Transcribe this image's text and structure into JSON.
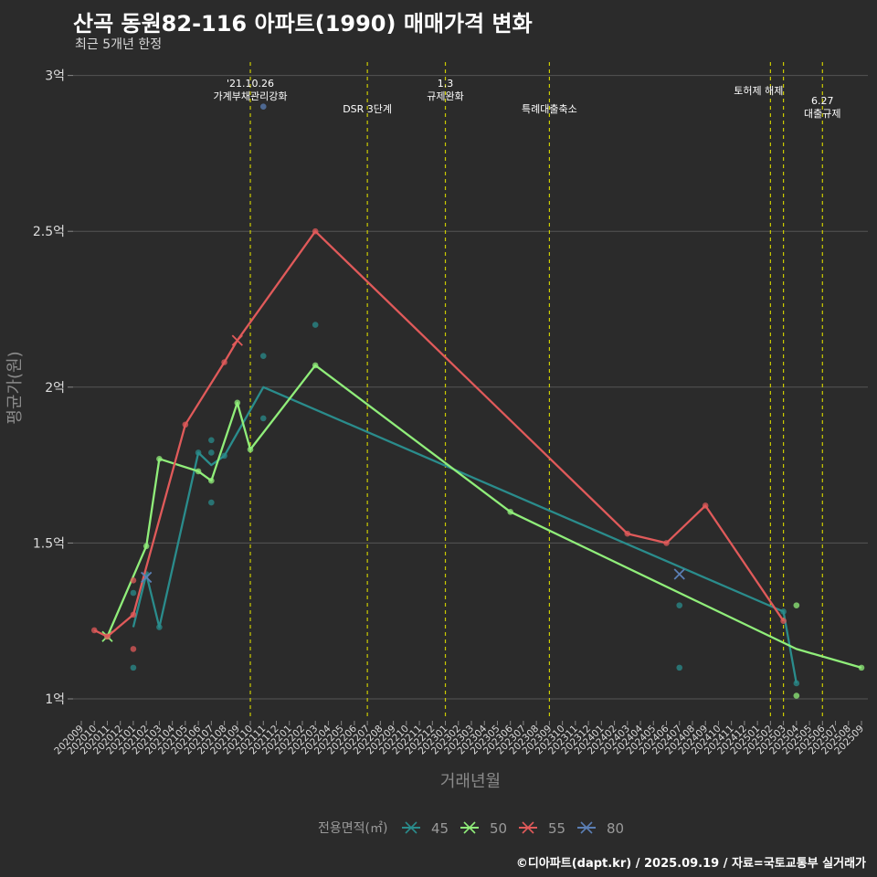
{
  "header": {
    "title": "산곡 동원82-116 아파트(1990) 매매가격 변화",
    "subtitle": "최근 5개년 한정"
  },
  "caption": "©디아파트(dapt.kr) / 2025.09.19 / 자료=국토교통부 실거래가",
  "colors": {
    "background": "#2b2b2b",
    "grid": "#555555",
    "event_line": "#cccc00",
    "s45": "#2a8c8c",
    "s50": "#90ee7a",
    "s55": "#e05a5a",
    "s80": "#5b7fb5"
  },
  "chart_data": {
    "type": "line",
    "title": "산곡 동원82-116 아파트(1990) 매매가격 변화",
    "subtitle": "최근 5개년 한정",
    "xlabel": "거래년월",
    "ylabel": "평균가(원)",
    "ylim": [
      0.95,
      3.05
    ],
    "yticks": [
      {
        "v": 1.0,
        "label": "1억"
      },
      {
        "v": 1.5,
        "label": "1.5억"
      },
      {
        "v": 2.0,
        "label": "2억"
      },
      {
        "v": 2.5,
        "label": "2.5억"
      },
      {
        "v": 3.0,
        "label": "3억"
      }
    ],
    "x_categories": [
      "202009",
      "202010",
      "202011",
      "202012",
      "202101",
      "202102",
      "202103",
      "202104",
      "202105",
      "202106",
      "202107",
      "202108",
      "202109",
      "202110",
      "202111",
      "202112",
      "202201",
      "202202",
      "202203",
      "202204",
      "202205",
      "202206",
      "202207",
      "202208",
      "202209",
      "202210",
      "202211",
      "202212",
      "202301",
      "202302",
      "202303",
      "202304",
      "202305",
      "202306",
      "202307",
      "202308",
      "202309",
      "202310",
      "202311",
      "202312",
      "202401",
      "202402",
      "202403",
      "202404",
      "202405",
      "202406",
      "202407",
      "202408",
      "202409",
      "202410",
      "202411",
      "202412",
      "202501",
      "202502",
      "202503",
      "202504",
      "202505",
      "202506",
      "202507",
      "202508",
      "202509"
    ],
    "grid": true,
    "legend": {
      "title": "전용면적(㎡)",
      "position": "bottom",
      "items": [
        {
          "key": "s45",
          "label": "45"
        },
        {
          "key": "s50",
          "label": "50"
        },
        {
          "key": "s55",
          "label": "55"
        },
        {
          "key": "s80",
          "label": "80"
        }
      ]
    },
    "events": [
      {
        "x": "202110",
        "lines": [
          "'21.10.26",
          "가계부채관리강화"
        ],
        "pos": "high"
      },
      {
        "x": "202207",
        "lines": [
          "DSR 3단계"
        ],
        "pos": "low"
      },
      {
        "x": "202301",
        "lines": [
          "1.3",
          "규제완화"
        ],
        "pos": "high"
      },
      {
        "x": "202309",
        "lines": [
          "특례대출축소"
        ],
        "pos": "low"
      },
      {
        "x": "202502",
        "lines": [
          "토허제 해제"
        ],
        "pos": "mid"
      },
      {
        "x": "202503",
        "lines": [],
        "pos": "mid"
      },
      {
        "x": "202506",
        "lines": [
          "6.27",
          "대출규제"
        ],
        "pos": "right"
      }
    ],
    "series": [
      {
        "name": "45",
        "key": "s45",
        "line": [
          [
            "202101",
            1.23
          ],
          [
            "202102",
            1.4
          ],
          [
            "202103",
            1.23
          ],
          [
            "202106",
            1.79
          ],
          [
            "202107",
            1.75
          ],
          [
            "202108",
            1.78
          ],
          [
            "202111",
            2.0
          ],
          [
            "202503",
            1.28
          ],
          [
            "202504",
            1.05
          ]
        ],
        "points": [
          [
            "202101",
            1.34
          ],
          [
            "202101",
            1.1
          ],
          [
            "202102",
            1.4
          ],
          [
            "202103",
            1.23
          ],
          [
            "202106",
            1.79
          ],
          [
            "202107",
            1.83
          ],
          [
            "202107",
            1.79
          ],
          [
            "202107",
            1.63
          ],
          [
            "202108",
            1.78
          ],
          [
            "202111",
            2.1
          ],
          [
            "202111",
            1.9
          ],
          [
            "202203",
            2.2
          ],
          [
            "202407",
            1.3
          ],
          [
            "202407",
            1.1
          ],
          [
            "202503",
            1.28
          ],
          [
            "202504",
            1.05
          ]
        ]
      },
      {
        "name": "50",
        "key": "s50",
        "line": [
          [
            "202011",
            1.2
          ],
          [
            "202102",
            1.49
          ],
          [
            "202103",
            1.77
          ],
          [
            "202106",
            1.73
          ],
          [
            "202107",
            1.7
          ],
          [
            "202109",
            1.95
          ],
          [
            "202110",
            1.8
          ],
          [
            "202203",
            2.07
          ],
          [
            "202306",
            1.6
          ],
          [
            "202504",
            1.16
          ],
          [
            "202509",
            1.1
          ]
        ],
        "points": [
          [
            "202011",
            1.2
          ],
          [
            "202102",
            1.49
          ],
          [
            "202103",
            1.77
          ],
          [
            "202106",
            1.73
          ],
          [
            "202107",
            1.7
          ],
          [
            "202109",
            1.95
          ],
          [
            "202110",
            1.8
          ],
          [
            "202203",
            2.07
          ],
          [
            "202306",
            1.6
          ],
          [
            "202504",
            1.01
          ],
          [
            "202504",
            1.3
          ],
          [
            "202509",
            1.1
          ]
        ],
        "crosses": [
          [
            "202011",
            1.2
          ]
        ]
      },
      {
        "name": "55",
        "key": "s55",
        "line": [
          [
            "202010",
            1.22
          ],
          [
            "202011",
            1.2
          ],
          [
            "202101",
            1.27
          ],
          [
            "202105",
            1.88
          ],
          [
            "202108",
            2.08
          ],
          [
            "202109",
            2.15
          ],
          [
            "202203",
            2.5
          ],
          [
            "202403",
            1.53
          ],
          [
            "202406",
            1.5
          ],
          [
            "202409",
            1.62
          ],
          [
            "202503",
            1.25
          ]
        ],
        "points": [
          [
            "202010",
            1.22
          ],
          [
            "202011",
            1.2
          ],
          [
            "202101",
            1.38
          ],
          [
            "202101",
            1.16
          ],
          [
            "202101",
            1.27
          ],
          [
            "202105",
            1.88
          ],
          [
            "202108",
            2.08
          ],
          [
            "202203",
            2.5
          ],
          [
            "202403",
            1.53
          ],
          [
            "202406",
            1.5
          ],
          [
            "202409",
            1.62
          ],
          [
            "202503",
            1.25
          ]
        ],
        "crosses": [
          [
            "202109",
            2.15
          ]
        ]
      },
      {
        "name": "80",
        "key": "s80",
        "line": [],
        "points": [
          [
            "202111",
            2.9
          ]
        ],
        "crosses": [
          [
            "202102",
            1.39
          ],
          [
            "202407",
            1.4
          ]
        ]
      }
    ]
  }
}
